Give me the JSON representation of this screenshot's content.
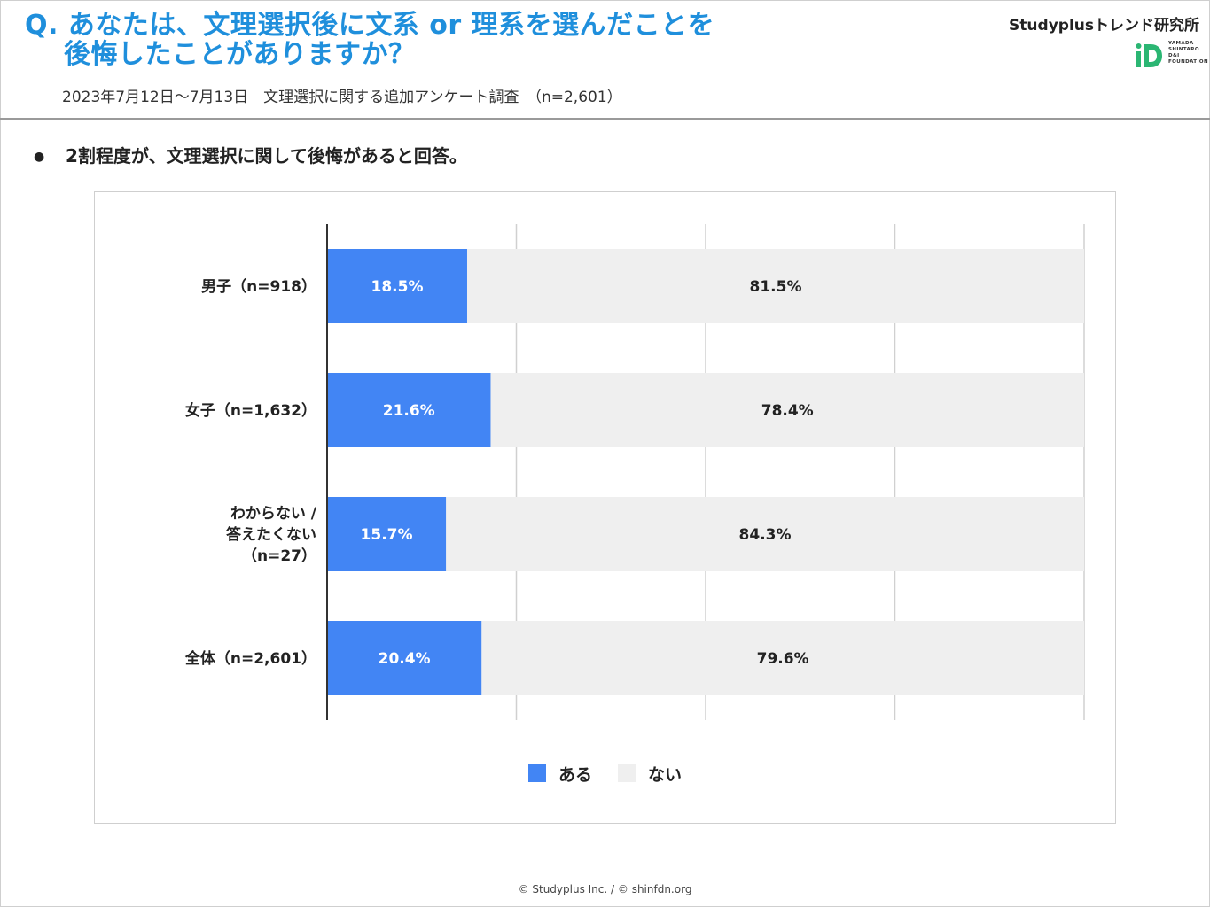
{
  "header": {
    "question_line1": "Q. あなたは、文理選択後に文系 or 理系を選んだことを",
    "question_line2": "後悔したことがありますか？",
    "survey_note": "2023年7月12日～7月13日　文理選択に関する追加アンケート調査　（n=2,601）",
    "brand": "Studyplusトレンド研究所",
    "logo_text": "YAMADA SHINTARO D&I FOUNDATION"
  },
  "summary": {
    "bullet": "●",
    "text": "2割程度が、文理選択に関して後悔があると回答。"
  },
  "colors": {
    "title": "#1f8fdc",
    "aru": "#4285f4",
    "nai": "#efefef",
    "grid": "#d0d0d0",
    "logo_green": "#2bb673"
  },
  "chart_data": {
    "type": "bar",
    "orientation": "horizontal",
    "stacked": true,
    "categories": [
      "男子（n=918）",
      "女子（n=1,632）",
      "わからない / 答えたくない （n=27）",
      "全体（n=2,601）"
    ],
    "category_lines": [
      [
        "男子（n=918）"
      ],
      [
        "女子（n=1,632）"
      ],
      [
        "わからない /",
        "答えたくない",
        "（n=27）"
      ],
      [
        "全体（n=2,601）"
      ]
    ],
    "series": [
      {
        "name": "ある",
        "values": [
          18.5,
          21.6,
          15.7,
          20.4
        ],
        "labels": [
          "18.5%",
          "21.6%",
          "15.7%",
          "20.4%"
        ],
        "color": "#4285f4"
      },
      {
        "name": "ない",
        "values": [
          81.5,
          78.4,
          84.3,
          79.6
        ],
        "labels": [
          "81.5%",
          "78.4%",
          "84.3%",
          "79.6%"
        ],
        "color": "#efefef"
      }
    ],
    "xlim": [
      0,
      100
    ],
    "grid": true,
    "legend_position": "bottom"
  },
  "footer": {
    "text": "© Studyplus Inc.  /  © shinfdn.org"
  }
}
